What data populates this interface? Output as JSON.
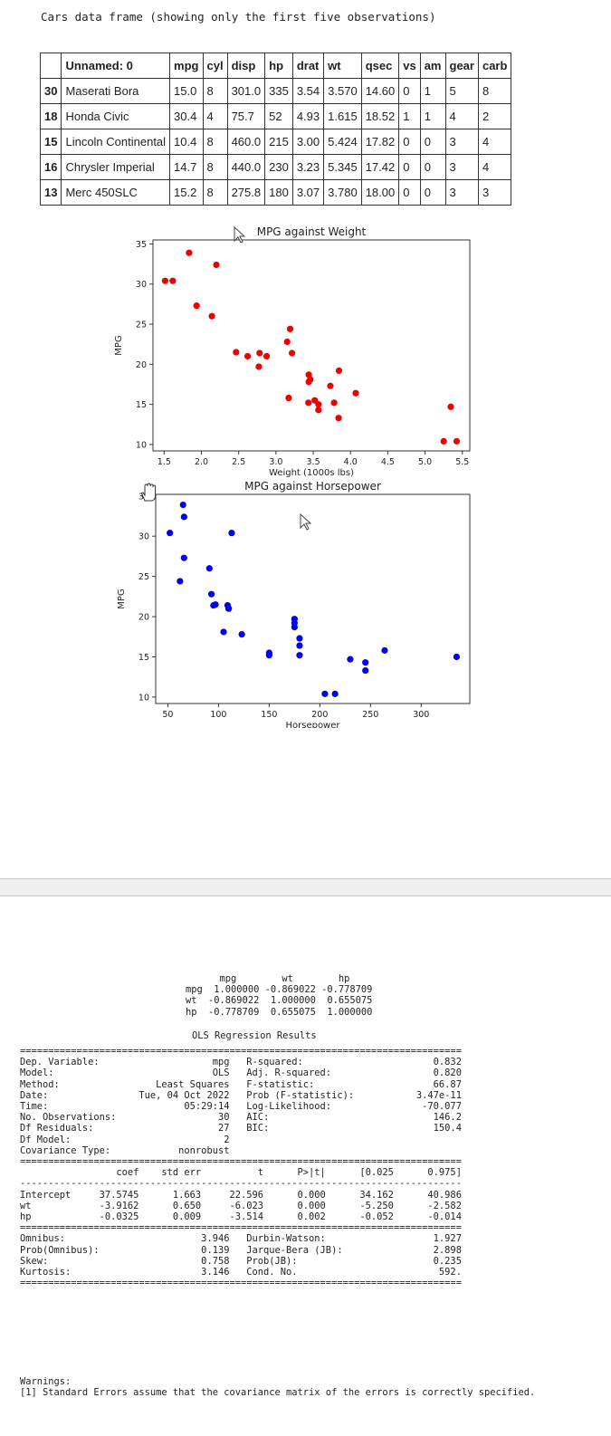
{
  "caption": "Cars data frame (showing only the first five observations)",
  "table": {
    "columns": [
      "",
      "Unnamed: 0",
      "mpg",
      "cyl",
      "disp",
      "hp",
      "drat",
      "wt",
      "qsec",
      "vs",
      "am",
      "gear",
      "carb"
    ],
    "rows": [
      [
        "30",
        "Maserati Bora",
        "15.0",
        "8",
        "301.0",
        "335",
        "3.54",
        "3.570",
        "14.60",
        "0",
        "1",
        "5",
        "8"
      ],
      [
        "18",
        "Honda Civic",
        "30.4",
        "4",
        "75.7",
        "52",
        "4.93",
        "1.615",
        "18.52",
        "1",
        "1",
        "4",
        "2"
      ],
      [
        "15",
        "Lincoln Continental",
        "10.4",
        "8",
        "460.0",
        "215",
        "3.00",
        "5.424",
        "17.82",
        "0",
        "0",
        "3",
        "4"
      ],
      [
        "16",
        "Chrysler Imperial",
        "14.7",
        "8",
        "440.0",
        "230",
        "3.23",
        "5.345",
        "17.42",
        "0",
        "0",
        "3",
        "4"
      ],
      [
        "13",
        "Merc 450SLC",
        "15.2",
        "8",
        "275.8",
        "180",
        "3.07",
        "3.780",
        "18.00",
        "0",
        "0",
        "3",
        "3"
      ]
    ]
  },
  "chart_data": [
    {
      "type": "scatter",
      "title": "MPG against Weight",
      "xlabel": "Weight (1000s lbs)",
      "ylabel": "MPG",
      "color": "#ee0000",
      "xlim": [
        1.35,
        5.6
      ],
      "ylim": [
        9.2,
        35.5
      ],
      "xticks": [
        1.5,
        2.0,
        2.5,
        3.0,
        3.5,
        4.0,
        4.5,
        5.0,
        5.5
      ],
      "yticks": [
        10,
        15,
        20,
        25,
        30,
        35
      ],
      "grid": false,
      "points": [
        [
          1.513,
          30.4
        ],
        [
          1.615,
          30.4
        ],
        [
          1.835,
          33.9
        ],
        [
          1.935,
          27.3
        ],
        [
          2.14,
          26.0
        ],
        [
          2.2,
          32.4
        ],
        [
          2.465,
          21.5
        ],
        [
          2.62,
          21.0
        ],
        [
          2.77,
          19.7
        ],
        [
          2.78,
          21.4
        ],
        [
          2.875,
          21.0
        ],
        [
          3.15,
          22.8
        ],
        [
          3.17,
          15.8
        ],
        [
          3.19,
          24.4
        ],
        [
          3.215,
          21.4
        ],
        [
          3.435,
          15.2
        ],
        [
          3.44,
          18.7
        ],
        [
          3.44,
          17.8
        ],
        [
          3.46,
          18.1
        ],
        [
          3.52,
          15.5
        ],
        [
          3.57,
          15.0
        ],
        [
          3.57,
          14.3
        ],
        [
          3.73,
          17.3
        ],
        [
          3.78,
          15.2
        ],
        [
          3.84,
          13.3
        ],
        [
          3.845,
          19.2
        ],
        [
          4.07,
          16.4
        ],
        [
          5.25,
          10.4
        ],
        [
          5.345,
          14.7
        ],
        [
          5.424,
          10.4
        ]
      ]
    },
    {
      "type": "scatter",
      "title": "MPG against Horsepower",
      "xlabel": "Horsepower",
      "ylabel": "MPG",
      "color": "#0000ee",
      "xlim": [
        38,
        348
      ],
      "ylim": [
        9.2,
        35.2
      ],
      "xticks": [
        50,
        100,
        150,
        200,
        250,
        300
      ],
      "yticks": [
        10,
        15,
        20,
        25,
        30,
        35
      ],
      "grid": false,
      "points": [
        [
          52,
          30.4
        ],
        [
          62,
          24.4
        ],
        [
          65,
          33.9
        ],
        [
          66,
          32.4
        ],
        [
          66,
          27.3
        ],
        [
          91,
          26.0
        ],
        [
          93,
          22.8
        ],
        [
          95,
          21.4
        ],
        [
          97,
          21.5
        ],
        [
          105,
          18.1
        ],
        [
          109,
          21.4
        ],
        [
          110,
          21.0
        ],
        [
          110,
          21.0
        ],
        [
          113,
          30.4
        ],
        [
          123,
          17.8
        ],
        [
          150,
          15.2
        ],
        [
          150,
          15.5
        ],
        [
          175,
          19.2
        ],
        [
          175,
          18.7
        ],
        [
          175,
          19.7
        ],
        [
          180,
          17.3
        ],
        [
          180,
          16.4
        ],
        [
          180,
          15.2
        ],
        [
          205,
          10.4
        ],
        [
          215,
          10.4
        ],
        [
          230,
          14.7
        ],
        [
          245,
          14.3
        ],
        [
          245,
          13.3
        ],
        [
          264,
          15.8
        ],
        [
          335,
          15.0
        ]
      ]
    }
  ],
  "correlation": {
    "header": "      mpg        wt        hp",
    "rows": [
      "mpg  1.000000 -0.869022 -0.778709",
      "wt  -0.869022  1.000000  0.655075",
      "hp  -0.778709  0.655075  1.000000"
    ]
  },
  "ols": {
    "title": "OLS Regression Results",
    "text": "==============================================================================\nDep. Variable:                    mpg   R-squared:                       0.832\nModel:                            OLS   Adj. R-squared:                  0.820\nMethod:                 Least Squares   F-statistic:                     66.87\nDate:                Tue, 04 Oct 2022   Prob (F-statistic):           3.47e-11\nTime:                        05:29:14   Log-Likelihood:                -70.077\nNo. Observations:                  30   AIC:                             146.2\nDf Residuals:                      27   BIC:                             150.4\nDf Model:                           2                                         \nCovariance Type:            nonrobust                                         \n==============================================================================\n                 coef    std err          t      P>|t|      [0.025      0.975]\n------------------------------------------------------------------------------\nIntercept     37.5745      1.663     22.596      0.000      34.162      40.986\nwt            -3.9162      0.650     -6.023      0.000      -5.250      -2.582\nhp            -0.0325      0.009     -3.514      0.002      -0.052      -0.014\n==============================================================================\nOmnibus:                        3.946   Durbin-Watson:                   1.927\nProb(Omnibus):                  0.139   Jarque-Bera (JB):                2.898\nSkew:                           0.758   Prob(JB):                        0.235\nKurtosis:                       3.146   Cond. No.                         592.\n==============================================================================",
    "summary": {
      "dep_variable": "mpg",
      "model": "OLS",
      "method": "Least Squares",
      "date": "Tue, 04 Oct 2022",
      "time": "05:29:14",
      "no_observations": "30",
      "df_residuals": "27",
      "df_model": "2",
      "covariance_type": "nonrobust",
      "r_squared": "0.832",
      "adj_r_squared": "0.820",
      "f_statistic": "66.87",
      "prob_f_statistic": "3.47e-11",
      "log_likelihood": "-70.077",
      "aic": "146.2",
      "bic": "150.4",
      "coefficients": [
        {
          "name": "Intercept",
          "coef": "37.5745",
          "std_err": "1.663",
          "t": "22.596",
          "p": "0.000",
          "ci_low": "34.162",
          "ci_high": "40.986"
        },
        {
          "name": "wt",
          "coef": "-3.9162",
          "std_err": "0.650",
          "t": "-6.023",
          "p": "0.000",
          "ci_low": "-5.250",
          "ci_high": "-2.582"
        },
        {
          "name": "hp",
          "coef": "-0.0325",
          "std_err": "0.009",
          "t": "-3.514",
          "p": "0.002",
          "ci_low": "-0.052",
          "ci_high": "-0.014"
        }
      ],
      "omnibus": "3.946",
      "prob_omnibus": "0.139",
      "skew": "0.758",
      "kurtosis": "3.146",
      "durbin_watson": "1.927",
      "jarque_bera": "2.898",
      "prob_jb": "0.235",
      "cond_no": "592."
    }
  },
  "warnings": {
    "text": "Warnings:\n[1] Standard Errors assume that the covariance matrix of the errors is correctly specified."
  },
  "icons": {
    "arrow_cursor": "arrow-pointer",
    "hand_cursor": "grab-hand",
    "text_cursor": "i-beam"
  }
}
